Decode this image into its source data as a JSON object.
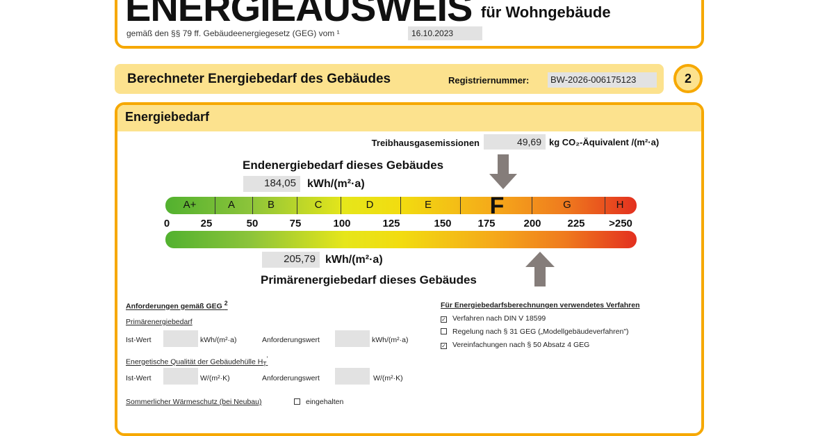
{
  "header": {
    "title": "ENERGIEAUSWEIS",
    "subtitle": "für Wohngebäude",
    "law_text": "gemäß den §§ 79 ff. Gebäudeenergiegesetz (GEG) vom ¹",
    "law_date": "16.10.2023"
  },
  "section": {
    "title": "Berechneter Energiebedarf des Gebäudes",
    "reg_label": "Registriernummer:",
    "reg_number": "BW-2026-006175123",
    "page_number": "2"
  },
  "energy": {
    "heading": "Energiebedarf",
    "ghg_label": "Treibhausgasemissionen",
    "ghg_value": "49,69",
    "ghg_unit": "kg CO₂-Äquivalent /(m²·a)",
    "end_label": "Endenergiebedarf dieses Gebäudes",
    "end_value": "184,05",
    "unit": "kWh/(m²·a)",
    "primary_label": "Primärenergiebedarf dieses Gebäudes",
    "primary_value": "205,79",
    "classes": [
      "A+",
      "A",
      "B",
      "C",
      "D",
      "E",
      "F",
      "G",
      "H"
    ],
    "current_class": "F",
    "ticks": [
      "0",
      "25",
      "50",
      "75",
      "100",
      "125",
      "150",
      "175",
      "200",
      "225",
      ">250"
    ]
  },
  "requirements": {
    "title": "Anforderungen gemäß GEG",
    "title_sup": "2",
    "primary_heading": "Primärenergiebedarf",
    "ist_label": "Ist-Wert",
    "anf_label": "Anforderungswert",
    "unit_kwh": "kWh/(m²·a)",
    "hull_heading": "Energetische Qualität der Gebäudehülle H",
    "hull_sub": "T",
    "hull_sup": "'",
    "unit_w": "W/(m²·K)",
    "summer_label": "Sommerlicher Wärmeschutz (bei Neubau)",
    "summer_value": "eingehalten",
    "summer_checked": false
  },
  "method": {
    "title": "Für Energiebedarfsberechnungen verwendetes Verfahren",
    "items": [
      {
        "label": "Verfahren nach DIN V 18599",
        "checked": true
      },
      {
        "label": "Regelung nach § 31 GEG („Modellgebäudeverfahren\")",
        "checked": false
      },
      {
        "label": "Vereinfachungen nach § 50 Absatz 4 GEG",
        "checked": true
      }
    ]
  }
}
